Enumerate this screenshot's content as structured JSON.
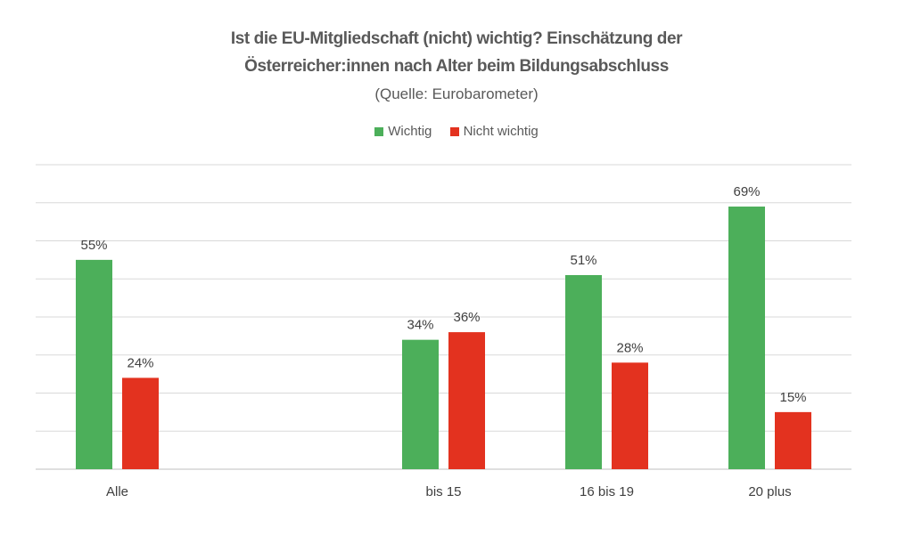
{
  "chart_data": {
    "type": "bar",
    "title": "Ist die EU-Mitgliedschaft (nicht) wichtig? Einschätzung der Österreicher:innen nach Alter beim Bildungsabschluss",
    "title_lines": [
      "Ist die EU-Mitgliedschaft (nicht) wichtig? Einschätzung der",
      "Österreicher:innen nach Alter beim Bildungsabschluss"
    ],
    "subtitle": "(Quelle: Eurobarometer)",
    "xlabel": "",
    "ylabel": "",
    "categories": [
      "Alle",
      "",
      "bis 15",
      "16 bis 19",
      "20 plus"
    ],
    "series": [
      {
        "name": "Wichtig",
        "color": "#4caf5a",
        "values": [
          55,
          null,
          34,
          51,
          69
        ]
      },
      {
        "name": "Nicht wichtig",
        "color": "#e3321f",
        "values": [
          24,
          null,
          36,
          28,
          15
        ]
      }
    ],
    "value_suffix": "%",
    "ylim": [
      0,
      80
    ],
    "grid": true,
    "legend_position": "top"
  }
}
